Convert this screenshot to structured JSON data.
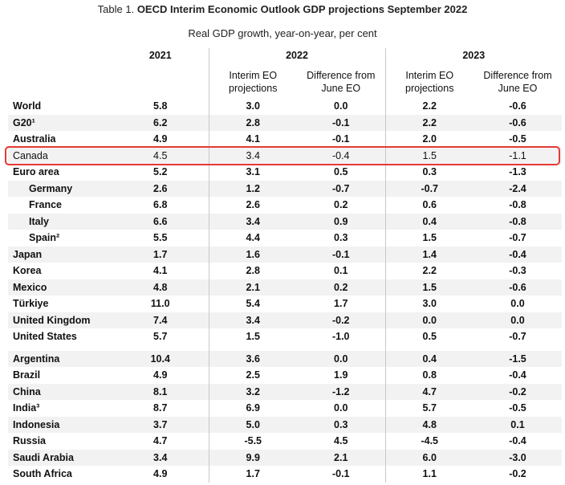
{
  "title": {
    "prefix": "Table 1. ",
    "bold": "OECD Interim Economic Outlook GDP projections September 2022"
  },
  "subtitle": "Real GDP growth, year-on-year, per cent",
  "headers": {
    "y2021": "2021",
    "y2022": "2022",
    "y2023": "2023",
    "ieo": "Interim EO projections",
    "diff": "Difference from June EO"
  },
  "rows": [
    {
      "label": "World",
      "v2021": "5.8",
      "i22": "3.0",
      "d22": "0.0",
      "i23": "2.2",
      "d23": "-0.6"
    },
    {
      "label": "G20¹",
      "v2021": "6.2",
      "i22": "2.8",
      "d22": "-0.1",
      "i23": "2.2",
      "d23": "-0.6"
    },
    {
      "label": "Australia",
      "v2021": "4.9",
      "i22": "4.1",
      "d22": "-0.1",
      "i23": "2.0",
      "d23": "-0.5"
    },
    {
      "label": "Canada",
      "v2021": "4.5",
      "i22": "3.4",
      "d22": "-0.4",
      "i23": "1.5",
      "d23": "-1.1"
    },
    {
      "label": "Euro area",
      "v2021": "5.2",
      "i22": "3.1",
      "d22": "0.5",
      "i23": "0.3",
      "d23": "-1.3"
    },
    {
      "label": "Germany",
      "v2021": "2.6",
      "i22": "1.2",
      "d22": "-0.7",
      "i23": "-0.7",
      "d23": "-2.4"
    },
    {
      "label": "France",
      "v2021": "6.8",
      "i22": "2.6",
      "d22": "0.2",
      "i23": "0.6",
      "d23": "-0.8"
    },
    {
      "label": "Italy",
      "v2021": "6.6",
      "i22": "3.4",
      "d22": "0.9",
      "i23": "0.4",
      "d23": "-0.8"
    },
    {
      "label": "Spain²",
      "v2021": "5.5",
      "i22": "4.4",
      "d22": "0.3",
      "i23": "1.5",
      "d23": "-0.7"
    },
    {
      "label": "Japan",
      "v2021": "1.7",
      "i22": "1.6",
      "d22": "-0.1",
      "i23": "1.4",
      "d23": "-0.4"
    },
    {
      "label": "Korea",
      "v2021": "4.1",
      "i22": "2.8",
      "d22": "0.1",
      "i23": "2.2",
      "d23": "-0.3"
    },
    {
      "label": "Mexico",
      "v2021": "4.8",
      "i22": "2.1",
      "d22": "0.2",
      "i23": "1.5",
      "d23": "-0.6"
    },
    {
      "label": "Türkiye",
      "v2021": "11.0",
      "i22": "5.4",
      "d22": "1.7",
      "i23": "3.0",
      "d23": "0.0"
    },
    {
      "label": "United Kingdom",
      "v2021": "7.4",
      "i22": "3.4",
      "d22": "-0.2",
      "i23": "0.0",
      "d23": "0.0"
    },
    {
      "label": "United States",
      "v2021": "5.7",
      "i22": "1.5",
      "d22": "-1.0",
      "i23": "0.5",
      "d23": "-0.7"
    },
    {
      "label": "Argentina",
      "v2021": "10.4",
      "i22": "3.6",
      "d22": "0.0",
      "i23": "0.4",
      "d23": "-1.5"
    },
    {
      "label": "Brazil",
      "v2021": "4.9",
      "i22": "2.5",
      "d22": "1.9",
      "i23": "0.8",
      "d23": "-0.4"
    },
    {
      "label": "China",
      "v2021": "8.1",
      "i22": "3.2",
      "d22": "-1.2",
      "i23": "4.7",
      "d23": "-0.2"
    },
    {
      "label": "India³",
      "v2021": "8.7",
      "i22": "6.9",
      "d22": "0.0",
      "i23": "5.7",
      "d23": "-0.5"
    },
    {
      "label": "Indonesia",
      "v2021": "3.7",
      "i22": "5.0",
      "d22": "0.3",
      "i23": "4.8",
      "d23": "0.1"
    },
    {
      "label": "Russia",
      "v2021": "4.7",
      "i22": "-5.5",
      "d22": "4.5",
      "i23": "-4.5",
      "d23": "-0.4"
    },
    {
      "label": "Saudi Arabia",
      "v2021": "3.4",
      "i22": "9.9",
      "d22": "2.1",
      "i23": "6.0",
      "d23": "-3.0"
    },
    {
      "label": "South Africa",
      "v2021": "4.9",
      "i22": "1.7",
      "d22": "-0.1",
      "i23": "1.1",
      "d23": "-0.2"
    }
  ],
  "highlight_color": "#e53935"
}
